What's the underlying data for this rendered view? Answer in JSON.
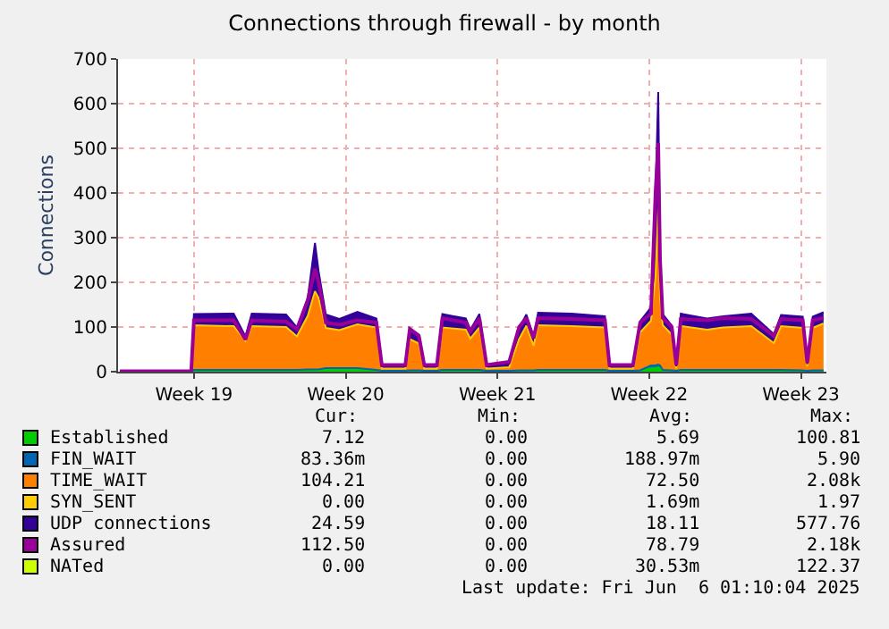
{
  "chart_data": {
    "type": "area",
    "title": "Connections through firewall - by month",
    "ylabel": "Connections",
    "x": [
      "2025-05-04T11:00",
      "2025-05-07T18:00",
      "2025-05-07T21:00",
      "2025-05-09T17:00",
      "2025-05-10T06:00",
      "2025-05-10T13:00",
      "2025-05-12T03:00",
      "2025-05-12T15:00",
      "2025-05-13T03:00",
      "2025-05-13T11:00",
      "2025-05-13T15:00",
      "2025-05-13T23:00",
      "2025-05-14T14:00",
      "2025-05-15T10:00",
      "2025-05-16T07:00",
      "2025-05-16T13:00",
      "2025-05-17T15:00",
      "2025-05-17T20:00",
      "2025-05-18T06:00",
      "2025-05-18T12:00",
      "2025-05-19T02:00",
      "2025-05-19T08:00",
      "2025-05-20T10:00",
      "2025-05-20T15:00",
      "2025-05-21T01:00",
      "2025-05-21T09:00",
      "2025-05-22T10:00",
      "2025-05-22T21:00",
      "2025-05-23T05:00",
      "2025-05-23T13:00",
      "2025-05-23T18:00",
      "2025-05-25T07:00",
      "2025-05-26T20:00",
      "2025-05-27T01:00",
      "2025-05-28T03:00",
      "2025-05-28T11:00",
      "2025-05-28T23:00",
      "2025-05-29T04:00",
      "2025-05-29T07:00",
      "2025-05-29T09:00",
      "2025-05-29T12:00",
      "2025-05-29T22:00",
      "2025-05-30T03:00",
      "2025-05-30T08:00",
      "2025-05-31T13:00",
      "2025-06-01T07:00",
      "2025-06-02T14:00",
      "2025-06-03T15:00",
      "2025-06-03T23:00",
      "2025-06-04T23:00",
      "2025-06-05T04:00",
      "2025-06-05T10:00",
      "2025-06-05T22:00"
    ],
    "stacked": true,
    "series": [
      {
        "name": "Established",
        "color": "#00cc00",
        "values": [
          0,
          0,
          4,
          4,
          4,
          4,
          4,
          4,
          5,
          5,
          5,
          4,
          4,
          4,
          4,
          2,
          2,
          3,
          3,
          2,
          2,
          4,
          4,
          4,
          4,
          2,
          2,
          3,
          3,
          3,
          4,
          4,
          4,
          2,
          2,
          3,
          8,
          8,
          10,
          8,
          4,
          3,
          2,
          4,
          4,
          4,
          4,
          4,
          4,
          3,
          2,
          3,
          3
        ]
      },
      {
        "name": "FIN_WAIT",
        "color": "#0066b3",
        "values": [
          0,
          0,
          0,
          0,
          0,
          0,
          0,
          0,
          0,
          0,
          0,
          4,
          4,
          4,
          0,
          0,
          0,
          0,
          0,
          0,
          0,
          0,
          0,
          0,
          0,
          0,
          0,
          0,
          0,
          0,
          0,
          0,
          0,
          0,
          0,
          0,
          6,
          6,
          6,
          6,
          0,
          0,
          0,
          0,
          0,
          0,
          0,
          0,
          0,
          0,
          0,
          0,
          0
        ]
      },
      {
        "name": "TIME_WAIT",
        "color": "#ff8000",
        "values": [
          0,
          0,
          100,
          98,
          65,
          98,
          96,
          75,
          120,
          175,
          160,
          90,
          85,
          98,
          95,
          5,
          5,
          70,
          60,
          5,
          5,
          95,
          90,
          70,
          95,
          5,
          8,
          70,
          100,
          55,
          100,
          98,
          95,
          5,
          5,
          85,
          100,
          200,
          350,
          150,
          100,
          80,
          5,
          98,
          90,
          95,
          98,
          60,
          98,
          95,
          10,
          95,
          105
        ]
      },
      {
        "name": "SYN_SENT",
        "color": "#ffcc00",
        "values": [
          null,
          null,
          null,
          null,
          null,
          null,
          null,
          null,
          null,
          null,
          null,
          null,
          null,
          null,
          null,
          null,
          null,
          null,
          null,
          null,
          null,
          null,
          null,
          null,
          null,
          null,
          null,
          null,
          null,
          null,
          null,
          null,
          null,
          null,
          null,
          null,
          null,
          null,
          null,
          null,
          null,
          null,
          null,
          null,
          null,
          null,
          null,
          null,
          null,
          null,
          null,
          null,
          null
        ]
      },
      {
        "name": "UDP connections",
        "color": "#330099",
        "values": [
          0,
          0,
          25,
          28,
          10,
          28,
          28,
          20,
          40,
          108,
          60,
          30,
          25,
          28,
          20,
          5,
          5,
          25,
          20,
          5,
          5,
          30,
          25,
          20,
          30,
          5,
          8,
          25,
          25,
          20,
          28,
          28,
          25,
          5,
          5,
          25,
          30,
          180,
          260,
          100,
          25,
          20,
          5,
          28,
          25,
          25,
          28,
          20,
          25,
          25,
          5,
          25,
          25
        ]
      },
      {
        "name": "Assured",
        "type": "line",
        "color": "#990099",
        "values": [
          1,
          1,
          115,
          115,
          72,
          115,
          112,
          95,
          160,
          230,
          200,
          110,
          105,
          115,
          110,
          15,
          15,
          95,
          80,
          15,
          15,
          120,
          110,
          90,
          120,
          15,
          22,
          100,
          120,
          75,
          120,
          118,
          115,
          15,
          15,
          110,
          130,
          400,
          512,
          250,
          120,
          100,
          15,
          118,
          115,
          120,
          118,
          80,
          118,
          115,
          20,
          115,
          120
        ]
      },
      {
        "name": "NATed",
        "type": "line",
        "color": "#ccff00",
        "values": [
          null,
          null,
          null,
          null,
          null,
          null,
          null,
          null,
          null,
          null,
          null,
          null,
          null,
          null,
          null,
          null,
          null,
          null,
          null,
          null,
          null,
          null,
          null,
          null,
          null,
          null,
          null,
          null,
          null,
          null,
          null,
          null,
          null,
          null,
          null,
          null,
          null,
          null,
          null,
          null,
          null,
          null,
          null,
          null,
          null,
          null,
          null,
          null,
          null,
          null,
          null,
          null,
          null
        ]
      }
    ],
    "xlim": [
      "2025-05-04T09:00",
      "2025-06-06T01:10"
    ],
    "xticks": [
      {
        "value": "2025-05-07T21:00",
        "label": "Week 19"
      },
      {
        "value": "2025-05-14T21:00",
        "label": "Week 20"
      },
      {
        "value": "2025-05-21T21:00",
        "label": "Week 21"
      },
      {
        "value": "2025-05-28T21:00",
        "label": "Week 22"
      },
      {
        "value": "2025-06-04T21:00",
        "label": "Week 23"
      }
    ],
    "ylim": [
      0,
      700
    ],
    "yticks": [
      0,
      100,
      200,
      300,
      400,
      500,
      600,
      700
    ],
    "grid": true,
    "legend": "bottom",
    "annotations": [
      "Cur:",
      "Min:",
      "Avg:",
      "Max:",
      "7.12",
      "0.00",
      "5.69",
      "100.81",
      "83.36m",
      "0.00",
      "188.97m",
      "5.90",
      "104.21",
      "0.00",
      "72.50",
      "2.08k",
      "0.00",
      "0.00",
      "1.69m",
      "1.97",
      "24.59",
      "0.00",
      "18.11",
      "577.76",
      "112.50",
      "0.00",
      "78.79",
      "2.18k",
      "0.00",
      "0.00",
      "30.53m",
      "122.37",
      "Last update: Fri Jun  6 01:10:04 2025"
    ]
  }
}
